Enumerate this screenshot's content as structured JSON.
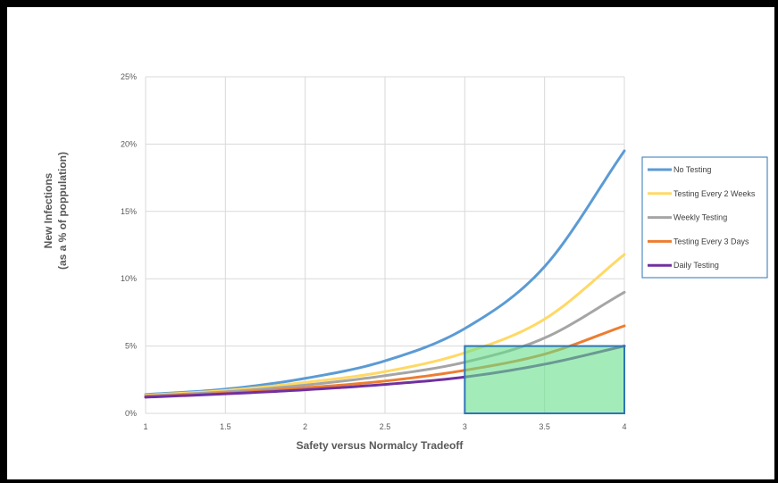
{
  "chart_data": {
    "type": "line",
    "xlabel": "Safety versus Normalcy Tradeoff",
    "ylabel_lines": [
      "New Infections",
      "(as a % of  poppulation)"
    ],
    "xlim": [
      1,
      4
    ],
    "ylim": [
      0,
      25
    ],
    "x_ticks": [
      1,
      1.5,
      2,
      2.5,
      3,
      3.5,
      4
    ],
    "x_tick_labels": [
      "1",
      "1.5",
      "2",
      "2.5",
      "3",
      "3.5",
      "4"
    ],
    "y_ticks": [
      0,
      5,
      10,
      15,
      20,
      25
    ],
    "y_tick_labels": [
      "0%",
      "5%",
      "10%",
      "15%",
      "20%",
      "25%"
    ],
    "grid": true,
    "legend_position": "right",
    "x": [
      1,
      1.5,
      2,
      2.5,
      3,
      3.5,
      4
    ],
    "series": [
      {
        "name": "No Testing",
        "color": "#5b9bd5",
        "values": [
          1.4,
          1.8,
          2.6,
          3.9,
          6.3,
          10.9,
          19.5
        ]
      },
      {
        "name": "Testing Every 2 Weeks",
        "color": "#ffd966",
        "values": [
          1.35,
          1.7,
          2.3,
          3.1,
          4.5,
          7.0,
          11.8
        ]
      },
      {
        "name": "Weekly Testing",
        "color": "#a5a5a5",
        "values": [
          1.3,
          1.6,
          2.1,
          2.8,
          3.8,
          5.6,
          9.0
        ]
      },
      {
        "name": "Testing Every 3 Days",
        "color": "#ed7d31",
        "values": [
          1.25,
          1.5,
          1.9,
          2.4,
          3.2,
          4.4,
          6.5
        ]
      },
      {
        "name": "Daily Testing",
        "color": "#7030a0",
        "values": [
          1.2,
          1.45,
          1.75,
          2.15,
          2.7,
          3.65,
          5.0
        ]
      }
    ],
    "highlight_region": {
      "x": [
        3,
        4
      ],
      "y": [
        0,
        5
      ],
      "fill": "#66e08a",
      "stroke": "#2e75b6"
    }
  }
}
